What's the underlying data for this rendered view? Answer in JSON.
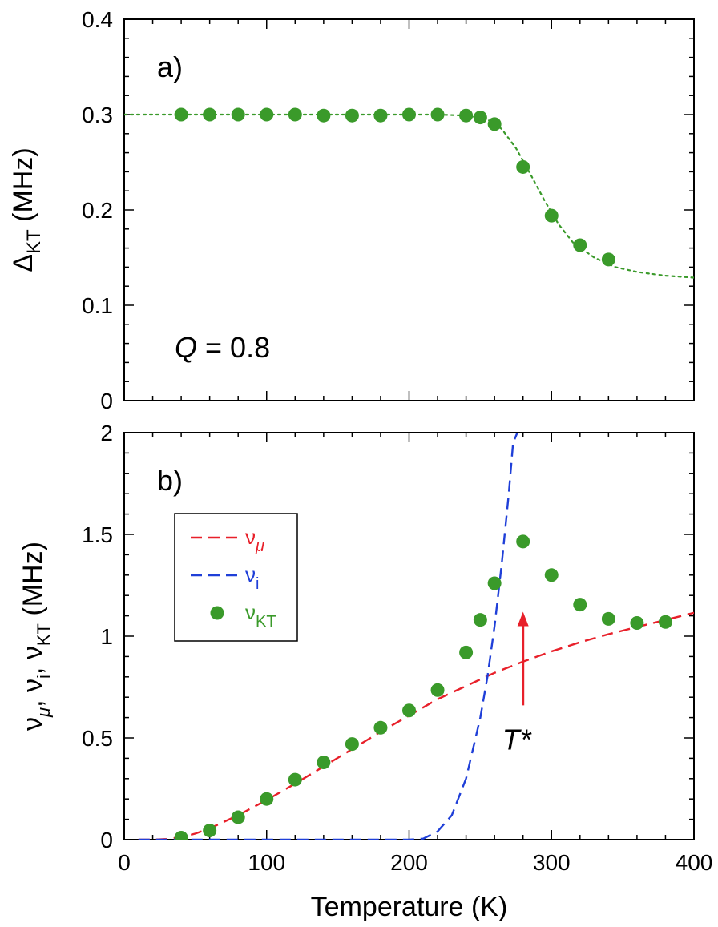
{
  "chart_data": [
    {
      "panel": "a)",
      "type": "scatter",
      "ylabel_main": "Δ",
      "ylabel_sub": "KT",
      "ylabel_unit": "(MHz)",
      "xlim": [
        0,
        400
      ],
      "ylim": [
        0,
        0.4
      ],
      "yticks": [
        "0",
        "0.1",
        "0.2",
        "0.3",
        "0.4"
      ],
      "yticks_values": [
        0,
        0.1,
        0.2,
        0.3,
        0.4
      ],
      "annotation_var": "Q",
      "annotation_eq": "= 0.8",
      "colors": {
        "points": "#3a9a2a",
        "fit": "#3a9a2a"
      },
      "series": [
        {
          "x": [
            40,
            60,
            80,
            100,
            120,
            140,
            160,
            180,
            200,
            220,
            240,
            250,
            260,
            280,
            300,
            320,
            340
          ],
          "y": [
            0.3,
            0.3,
            0.3,
            0.3,
            0.3,
            0.299,
            0.299,
            0.299,
            0.3,
            0.3,
            0.299,
            0.297,
            0.29,
            0.245,
            0.194,
            0.163,
            0.148
          ]
        },
        {
          "style": "dotted",
          "x": [
            0,
            220,
            240,
            255,
            265,
            275,
            285,
            295,
            305,
            315,
            330,
            345,
            360,
            380,
            400
          ],
          "y": [
            0.3,
            0.3,
            0.299,
            0.295,
            0.285,
            0.265,
            0.238,
            0.21,
            0.185,
            0.166,
            0.15,
            0.14,
            0.135,
            0.131,
            0.129
          ]
        }
      ]
    },
    {
      "panel": "b)",
      "type": "line",
      "xlabel": "Temperature (K)",
      "ylabel_parts": [
        {
          "main": "ν",
          "sub": "μ"
        },
        {
          "main": "ν",
          "sub": "i"
        },
        {
          "main": "ν",
          "sub": "KT"
        }
      ],
      "ylabel_unit": "(MHz)",
      "xlim": [
        0,
        400
      ],
      "ylim": [
        0,
        2
      ],
      "xticks": [
        "0",
        "100",
        "200",
        "300",
        "400"
      ],
      "xticks_values": [
        0,
        100,
        200,
        300,
        400
      ],
      "yticks": [
        "0",
        "0.5",
        "1",
        "1.5",
        "2"
      ],
      "yticks_values": [
        0,
        0.5,
        1,
        1.5,
        2
      ],
      "annotation": "T*",
      "arrow": {
        "x": 280,
        "y_from": 0.66,
        "y_to": 1.12
      },
      "legend_position": "upper-left",
      "legend": [
        {
          "main": "ν",
          "sub": "μ",
          "style": "dashed",
          "color": "#e8202a"
        },
        {
          "main": "ν",
          "sub": "i",
          "style": "dashed",
          "color": "#1f3fd8"
        },
        {
          "main": "ν",
          "sub": "KT",
          "style": "marker",
          "color": "#3a9a2a"
        }
      ],
      "series": [
        {
          "style": "dashed",
          "color": "#e8202a",
          "x": [
            10,
            20,
            30,
            40,
            50,
            60,
            80,
            100,
            120,
            140,
            160,
            180,
            200,
            220,
            240,
            260,
            280,
            300,
            320,
            340,
            360,
            380,
            400
          ],
          "y": [
            0.0,
            0.0,
            0.003,
            0.012,
            0.03,
            0.055,
            0.12,
            0.195,
            0.275,
            0.36,
            0.445,
            0.53,
            0.61,
            0.69,
            0.755,
            0.82,
            0.875,
            0.925,
            0.97,
            1.01,
            1.045,
            1.08,
            1.115
          ]
        },
        {
          "style": "dashed",
          "color": "#1f3fd8",
          "x": [
            10,
            100,
            200,
            210,
            220,
            230,
            240,
            250,
            255,
            260,
            265,
            270,
            273,
            276
          ],
          "y": [
            0.0,
            0.0,
            0.0,
            0.005,
            0.04,
            0.12,
            0.3,
            0.6,
            0.8,
            1.05,
            1.35,
            1.7,
            1.95,
            2.0
          ]
        },
        {
          "style": "marker",
          "color": "#3a9a2a",
          "x": [
            40,
            60,
            80,
            100,
            120,
            140,
            160,
            180,
            200,
            220,
            240,
            250,
            260,
            280,
            300,
            320,
            340,
            360,
            380
          ],
          "y": [
            0.01,
            0.045,
            0.11,
            0.2,
            0.295,
            0.38,
            0.47,
            0.55,
            0.635,
            0.735,
            0.92,
            1.08,
            1.26,
            1.465,
            1.3,
            1.155,
            1.085,
            1.065,
            1.07
          ]
        }
      ]
    }
  ]
}
